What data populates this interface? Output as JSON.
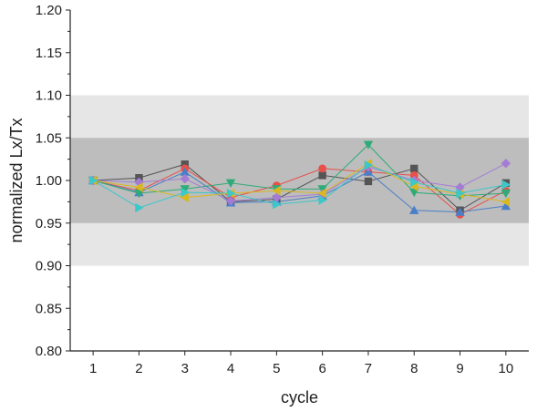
{
  "chart_data": {
    "type": "scatter",
    "xlabel": "cycle",
    "ylabel": "normalized Lx/Tx",
    "x": [
      1,
      2,
      3,
      4,
      5,
      6,
      7,
      8,
      9,
      10
    ],
    "xlim": [
      0.5,
      10.5
    ],
    "ylim": [
      0.8,
      1.2
    ],
    "x_ticks": [
      "1",
      "2",
      "3",
      "4",
      "5",
      "6",
      "7",
      "8",
      "9",
      "10"
    ],
    "y_ticks": [
      "0.80",
      "0.85",
      "0.90",
      "0.95",
      "1.00",
      "1.05",
      "1.10",
      "1.15",
      "1.20"
    ],
    "bands": [
      {
        "range": [
          0.9,
          1.1
        ],
        "color": "#e6e6e6"
      },
      {
        "range": [
          0.95,
          1.05
        ],
        "color": "#bdbdbd"
      }
    ],
    "grid": false,
    "legend": "none",
    "series": [
      {
        "marker": "square",
        "color": "#555555",
        "values": [
          1.0,
          1.003,
          1.019,
          0.975,
          0.978,
          1.006,
          0.999,
          1.014,
          0.965,
          0.997
        ]
      },
      {
        "marker": "circle",
        "color": "#e8504a",
        "values": [
          1.0,
          0.988,
          1.014,
          0.98,
          0.994,
          1.014,
          1.01,
          1.006,
          0.96,
          0.988
        ]
      },
      {
        "marker": "triangle-up",
        "color": "#4a7fc8",
        "values": [
          1.0,
          0.986,
          1.01,
          0.974,
          0.975,
          0.982,
          1.01,
          0.965,
          0.963,
          0.97
        ]
      },
      {
        "marker": "triangle-down",
        "color": "#2eab78",
        "values": [
          1.0,
          0.985,
          0.99,
          0.997,
          0.99,
          0.99,
          1.042,
          0.986,
          0.982,
          0.985
        ]
      },
      {
        "marker": "diamond",
        "color": "#a47cd6",
        "values": [
          1.0,
          0.998,
          1.002,
          0.976,
          0.98,
          0.984,
          1.016,
          1.0,
          0.992,
          1.02
        ]
      },
      {
        "marker": "triangle-left",
        "color": "#d8b81e",
        "values": [
          1.0,
          0.992,
          0.98,
          0.985,
          0.988,
          0.985,
          1.02,
          0.993,
          0.984,
          0.975
        ]
      },
      {
        "marker": "triangle-right",
        "color": "#3cc7c9",
        "values": [
          1.0,
          0.968,
          0.986,
          0.985,
          0.972,
          0.977,
          1.018,
          0.998,
          0.985,
          0.995
        ]
      }
    ]
  }
}
